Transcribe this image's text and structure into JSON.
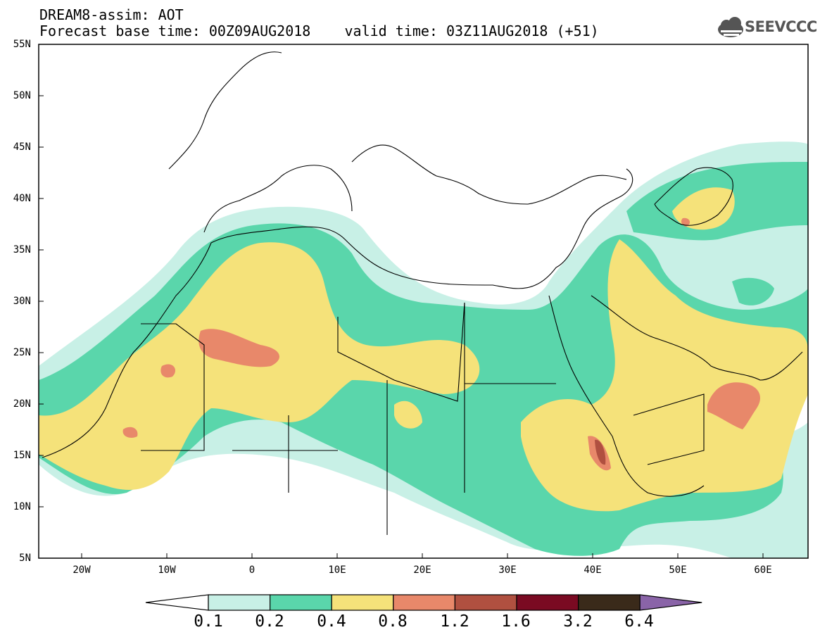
{
  "header": {
    "title": "DREAM8-assim: AOT",
    "base_time_label": "Forecast base time: 00Z09AUG2018",
    "valid_time_label": "valid time: 03Z11AUG2018 (+51)"
  },
  "logo": {
    "text": "SEEVCCC",
    "icon": "cloud-icon"
  },
  "map": {
    "variable": "AOT",
    "lon_range": [
      -25,
      65
    ],
    "lat_range": [
      5,
      55
    ],
    "lat_labels": [
      "55N",
      "50N",
      "45N",
      "40N",
      "35N",
      "30N",
      "25N",
      "20N",
      "15N",
      "10N",
      "5N"
    ],
    "lon_labels": [
      "20W",
      "10W",
      "0",
      "10E",
      "20E",
      "30E",
      "40E",
      "50E",
      "60E"
    ],
    "features": [
      "coastlines",
      "country-borders"
    ]
  },
  "legend": {
    "levels": [
      "0.1",
      "0.2",
      "0.4",
      "0.8",
      "1.2",
      "1.6",
      "3.2",
      "6.4"
    ],
    "colors": [
      "#ffffff",
      "#c8f0e6",
      "#5ad6ab",
      "#f5e27a",
      "#e8886a",
      "#b05040",
      "#7a0a22",
      "#3a2a1a",
      "#8a64a8"
    ]
  },
  "colors": {
    "aot_0_1": "#c8f0e6",
    "aot_0_2": "#5ad6ab",
    "aot_0_4": "#f5e27a",
    "aot_0_8": "#e8886a",
    "aot_1_2": "#b05040",
    "border": "#000000"
  }
}
